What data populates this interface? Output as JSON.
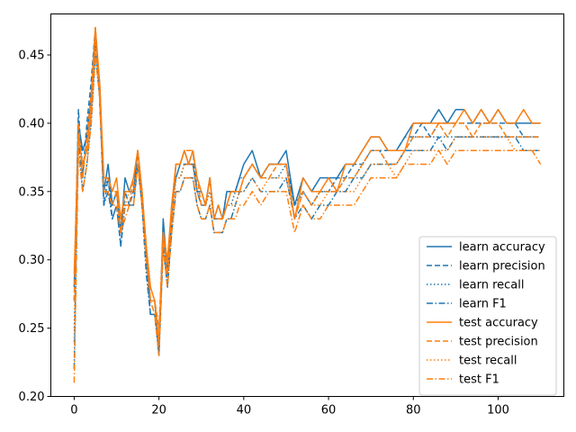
{
  "chart_data": {
    "type": "line",
    "title": "",
    "xlabel": "",
    "ylabel": "",
    "xlim": [
      -5.5,
      115.5
    ],
    "ylim": [
      0.2,
      0.48
    ],
    "xticks": [
      0,
      20,
      40,
      60,
      80,
      100
    ],
    "yticks": [
      0.2,
      0.25,
      0.3,
      0.35,
      0.4,
      0.45
    ],
    "ytick_labels": [
      "0.20",
      "0.25",
      "0.30",
      "0.35",
      "0.40",
      "0.45"
    ],
    "grid": false,
    "legend_position": "lower-right",
    "colors": {
      "learn": "#1f77b4",
      "test": "#ff7f0e"
    },
    "series": [
      {
        "name": "learn accuracy",
        "group": "learn",
        "dash": "solid",
        "x": [
          0,
          1,
          2,
          3,
          4,
          5,
          6,
          7,
          8,
          9,
          10,
          11,
          12,
          13,
          14,
          15,
          16,
          17,
          18,
          19,
          20,
          21,
          22,
          23,
          24,
          25,
          26,
          27,
          28,
          29,
          30,
          31,
          32,
          33,
          34,
          35,
          36,
          37,
          38,
          39,
          40,
          42,
          44,
          46,
          48,
          50,
          52,
          54,
          56,
          58,
          60,
          62,
          64,
          66,
          68,
          70,
          72,
          74,
          76,
          78,
          80,
          82,
          84,
          86,
          88,
          90,
          92,
          94,
          96,
          98,
          100,
          102,
          104,
          106,
          108,
          110
        ],
        "y": [
          0.28,
          0.4,
          0.38,
          0.39,
          0.42,
          0.46,
          0.43,
          0.35,
          0.37,
          0.34,
          0.35,
          0.32,
          0.36,
          0.35,
          0.35,
          0.38,
          0.35,
          0.3,
          0.27,
          0.27,
          0.23,
          0.33,
          0.29,
          0.34,
          0.36,
          0.37,
          0.38,
          0.37,
          0.37,
          0.35,
          0.35,
          0.34,
          0.36,
          0.33,
          0.34,
          0.33,
          0.35,
          0.35,
          0.35,
          0.36,
          0.37,
          0.38,
          0.36,
          0.37,
          0.37,
          0.38,
          0.34,
          0.36,
          0.35,
          0.36,
          0.36,
          0.36,
          0.37,
          0.37,
          0.38,
          0.39,
          0.39,
          0.38,
          0.38,
          0.39,
          0.4,
          0.4,
          0.4,
          0.41,
          0.4,
          0.41,
          0.41,
          0.4,
          0.41,
          0.4,
          0.41,
          0.4,
          0.4,
          0.4,
          0.4,
          0.4
        ]
      },
      {
        "name": "learn precision",
        "group": "learn",
        "dash": "dashed",
        "x": [
          0,
          1,
          2,
          3,
          4,
          5,
          6,
          7,
          8,
          9,
          10,
          11,
          12,
          13,
          14,
          15,
          16,
          17,
          18,
          19,
          20,
          21,
          22,
          23,
          24,
          25,
          26,
          27,
          28,
          29,
          30,
          31,
          32,
          33,
          34,
          35,
          36,
          37,
          38,
          39,
          40,
          42,
          44,
          46,
          48,
          50,
          52,
          54,
          56,
          58,
          60,
          62,
          64,
          66,
          68,
          70,
          72,
          74,
          76,
          78,
          80,
          82,
          84,
          86,
          88,
          90,
          92,
          94,
          96,
          98,
          100,
          102,
          104,
          106,
          108,
          110
        ],
        "y": [
          0.27,
          0.41,
          0.36,
          0.4,
          0.43,
          0.47,
          0.42,
          0.34,
          0.36,
          0.33,
          0.34,
          0.31,
          0.35,
          0.34,
          0.35,
          0.38,
          0.35,
          0.3,
          0.26,
          0.26,
          0.24,
          0.32,
          0.28,
          0.33,
          0.37,
          0.37,
          0.37,
          0.37,
          0.38,
          0.35,
          0.34,
          0.34,
          0.36,
          0.33,
          0.33,
          0.33,
          0.35,
          0.35,
          0.35,
          0.36,
          0.36,
          0.37,
          0.36,
          0.37,
          0.37,
          0.37,
          0.34,
          0.35,
          0.34,
          0.35,
          0.35,
          0.36,
          0.36,
          0.37,
          0.37,
          0.38,
          0.38,
          0.38,
          0.38,
          0.39,
          0.39,
          0.4,
          0.39,
          0.4,
          0.4,
          0.4,
          0.4,
          0.4,
          0.4,
          0.4,
          0.4,
          0.4,
          0.4,
          0.39,
          0.39,
          0.39
        ]
      },
      {
        "name": "learn recall",
        "group": "learn",
        "dash": "dotted",
        "x": [
          0,
          1,
          2,
          3,
          4,
          5,
          6,
          7,
          8,
          9,
          10,
          11,
          12,
          13,
          14,
          15,
          16,
          17,
          18,
          19,
          20,
          21,
          22,
          23,
          24,
          25,
          26,
          27,
          28,
          29,
          30,
          31,
          32,
          33,
          34,
          35,
          36,
          37,
          38,
          39,
          40,
          42,
          44,
          46,
          48,
          50,
          52,
          54,
          56,
          58,
          60,
          62,
          64,
          66,
          68,
          70,
          72,
          74,
          76,
          78,
          80,
          82,
          84,
          86,
          88,
          90,
          92,
          94,
          96,
          98,
          100,
          102,
          104,
          106,
          108,
          110
        ],
        "y": [
          0.24,
          0.4,
          0.37,
          0.38,
          0.41,
          0.46,
          0.43,
          0.35,
          0.36,
          0.34,
          0.35,
          0.32,
          0.35,
          0.35,
          0.35,
          0.37,
          0.35,
          0.3,
          0.27,
          0.27,
          0.24,
          0.32,
          0.29,
          0.33,
          0.36,
          0.36,
          0.37,
          0.37,
          0.37,
          0.35,
          0.34,
          0.34,
          0.35,
          0.33,
          0.33,
          0.33,
          0.34,
          0.34,
          0.35,
          0.36,
          0.36,
          0.37,
          0.36,
          0.36,
          0.36,
          0.37,
          0.34,
          0.35,
          0.34,
          0.35,
          0.35,
          0.35,
          0.36,
          0.36,
          0.37,
          0.38,
          0.38,
          0.37,
          0.37,
          0.38,
          0.39,
          0.39,
          0.39,
          0.39,
          0.39,
          0.39,
          0.39,
          0.39,
          0.39,
          0.39,
          0.39,
          0.39,
          0.39,
          0.39,
          0.39,
          0.39
        ]
      },
      {
        "name": "learn F1",
        "group": "learn",
        "dash": "dashdot",
        "x": [
          0,
          1,
          2,
          3,
          4,
          5,
          6,
          7,
          8,
          9,
          10,
          11,
          12,
          13,
          14,
          15,
          16,
          17,
          18,
          19,
          20,
          21,
          22,
          23,
          24,
          25,
          26,
          27,
          28,
          29,
          30,
          31,
          32,
          33,
          34,
          35,
          36,
          37,
          38,
          39,
          40,
          42,
          44,
          46,
          48,
          50,
          52,
          54,
          56,
          58,
          60,
          62,
          64,
          66,
          68,
          70,
          72,
          74,
          76,
          78,
          80,
          82,
          84,
          86,
          88,
          90,
          92,
          94,
          96,
          98,
          100,
          102,
          104,
          106,
          108,
          110
        ],
        "y": [
          0.22,
          0.39,
          0.35,
          0.37,
          0.4,
          0.45,
          0.42,
          0.34,
          0.35,
          0.33,
          0.34,
          0.31,
          0.34,
          0.34,
          0.34,
          0.37,
          0.34,
          0.29,
          0.26,
          0.26,
          0.23,
          0.31,
          0.28,
          0.32,
          0.35,
          0.35,
          0.36,
          0.36,
          0.36,
          0.34,
          0.33,
          0.33,
          0.34,
          0.32,
          0.32,
          0.32,
          0.33,
          0.33,
          0.34,
          0.35,
          0.35,
          0.36,
          0.35,
          0.35,
          0.35,
          0.36,
          0.33,
          0.34,
          0.33,
          0.34,
          0.34,
          0.35,
          0.35,
          0.36,
          0.36,
          0.37,
          0.37,
          0.37,
          0.37,
          0.38,
          0.38,
          0.38,
          0.38,
          0.39,
          0.38,
          0.39,
          0.39,
          0.39,
          0.39,
          0.39,
          0.39,
          0.39,
          0.39,
          0.38,
          0.38,
          0.38
        ]
      },
      {
        "name": "test accuracy",
        "group": "test",
        "dash": "solid",
        "x": [
          0,
          1,
          2,
          3,
          4,
          5,
          6,
          7,
          8,
          9,
          10,
          11,
          12,
          13,
          14,
          15,
          16,
          17,
          18,
          19,
          20,
          21,
          22,
          23,
          24,
          25,
          26,
          27,
          28,
          29,
          30,
          31,
          32,
          33,
          34,
          35,
          36,
          37,
          38,
          39,
          40,
          42,
          44,
          46,
          48,
          50,
          52,
          54,
          56,
          58,
          60,
          62,
          64,
          66,
          68,
          70,
          72,
          74,
          76,
          78,
          80,
          82,
          84,
          86,
          88,
          90,
          92,
          94,
          96,
          98,
          100,
          102,
          104,
          106,
          108,
          110
        ],
        "y": [
          0.29,
          0.39,
          0.37,
          0.38,
          0.41,
          0.47,
          0.43,
          0.36,
          0.36,
          0.35,
          0.36,
          0.33,
          0.35,
          0.35,
          0.36,
          0.38,
          0.35,
          0.31,
          0.28,
          0.27,
          0.24,
          0.32,
          0.3,
          0.34,
          0.37,
          0.37,
          0.38,
          0.37,
          0.38,
          0.36,
          0.35,
          0.34,
          0.36,
          0.33,
          0.34,
          0.33,
          0.34,
          0.35,
          0.35,
          0.35,
          0.36,
          0.37,
          0.36,
          0.37,
          0.37,
          0.37,
          0.33,
          0.36,
          0.35,
          0.35,
          0.36,
          0.35,
          0.37,
          0.37,
          0.38,
          0.39,
          0.39,
          0.38,
          0.38,
          0.38,
          0.4,
          0.4,
          0.4,
          0.4,
          0.4,
          0.4,
          0.41,
          0.4,
          0.41,
          0.4,
          0.41,
          0.4,
          0.4,
          0.41,
          0.4,
          0.4
        ]
      },
      {
        "name": "test precision",
        "group": "test",
        "dash": "dashed",
        "x": [
          0,
          1,
          2,
          3,
          4,
          5,
          6,
          7,
          8,
          9,
          10,
          11,
          12,
          13,
          14,
          15,
          16,
          17,
          18,
          19,
          20,
          21,
          22,
          23,
          24,
          25,
          26,
          27,
          28,
          29,
          30,
          31,
          32,
          33,
          34,
          35,
          36,
          37,
          38,
          39,
          40,
          42,
          44,
          46,
          48,
          50,
          52,
          54,
          56,
          58,
          60,
          62,
          64,
          66,
          68,
          70,
          72,
          74,
          76,
          78,
          80,
          82,
          84,
          86,
          88,
          90,
          92,
          94,
          96,
          98,
          100,
          102,
          104,
          106,
          108,
          110
        ],
        "y": [
          0.27,
          0.4,
          0.36,
          0.39,
          0.42,
          0.47,
          0.42,
          0.35,
          0.35,
          0.34,
          0.35,
          0.32,
          0.34,
          0.34,
          0.36,
          0.38,
          0.35,
          0.31,
          0.27,
          0.27,
          0.25,
          0.32,
          0.29,
          0.33,
          0.37,
          0.37,
          0.38,
          0.38,
          0.38,
          0.36,
          0.34,
          0.34,
          0.36,
          0.33,
          0.33,
          0.33,
          0.34,
          0.35,
          0.35,
          0.35,
          0.36,
          0.37,
          0.36,
          0.36,
          0.37,
          0.37,
          0.33,
          0.35,
          0.34,
          0.35,
          0.35,
          0.35,
          0.36,
          0.36,
          0.37,
          0.38,
          0.38,
          0.37,
          0.37,
          0.38,
          0.39,
          0.39,
          0.39,
          0.4,
          0.39,
          0.4,
          0.4,
          0.39,
          0.4,
          0.4,
          0.4,
          0.39,
          0.39,
          0.39,
          0.39,
          0.39
        ]
      },
      {
        "name": "test recall",
        "group": "test",
        "dash": "dotted",
        "x": [
          0,
          1,
          2,
          3,
          4,
          5,
          6,
          7,
          8,
          9,
          10,
          11,
          12,
          13,
          14,
          15,
          16,
          17,
          18,
          19,
          20,
          21,
          22,
          23,
          24,
          25,
          26,
          27,
          28,
          29,
          30,
          31,
          32,
          33,
          34,
          35,
          36,
          37,
          38,
          39,
          40,
          42,
          44,
          46,
          48,
          50,
          52,
          54,
          56,
          58,
          60,
          62,
          64,
          66,
          68,
          70,
          72,
          74,
          76,
          78,
          80,
          82,
          84,
          86,
          88,
          90,
          92,
          94,
          96,
          98,
          100,
          102,
          104,
          106,
          108,
          110
        ],
        "y": [
          0.25,
          0.39,
          0.37,
          0.38,
          0.41,
          0.46,
          0.43,
          0.36,
          0.36,
          0.35,
          0.35,
          0.33,
          0.34,
          0.35,
          0.35,
          0.37,
          0.35,
          0.31,
          0.28,
          0.27,
          0.24,
          0.32,
          0.29,
          0.33,
          0.36,
          0.36,
          0.37,
          0.37,
          0.37,
          0.35,
          0.34,
          0.34,
          0.35,
          0.33,
          0.33,
          0.33,
          0.34,
          0.34,
          0.34,
          0.35,
          0.35,
          0.36,
          0.35,
          0.36,
          0.36,
          0.36,
          0.33,
          0.35,
          0.34,
          0.34,
          0.35,
          0.35,
          0.35,
          0.35,
          0.36,
          0.37,
          0.37,
          0.37,
          0.36,
          0.37,
          0.38,
          0.38,
          0.38,
          0.38,
          0.38,
          0.39,
          0.39,
          0.39,
          0.39,
          0.39,
          0.39,
          0.39,
          0.38,
          0.38,
          0.38,
          0.38
        ]
      },
      {
        "name": "test F1",
        "group": "test",
        "dash": "dashdot",
        "x": [
          0,
          1,
          2,
          3,
          4,
          5,
          6,
          7,
          8,
          9,
          10,
          11,
          12,
          13,
          14,
          15,
          16,
          17,
          18,
          19,
          20,
          21,
          22,
          23,
          24,
          25,
          26,
          27,
          28,
          29,
          30,
          31,
          32,
          33,
          34,
          35,
          36,
          37,
          38,
          39,
          40,
          42,
          44,
          46,
          48,
          50,
          52,
          54,
          56,
          58,
          60,
          62,
          64,
          66,
          68,
          70,
          72,
          74,
          76,
          78,
          80,
          82,
          84,
          86,
          88,
          90,
          92,
          94,
          96,
          98,
          100,
          102,
          104,
          106,
          108,
          110
        ],
        "y": [
          0.21,
          0.38,
          0.35,
          0.37,
          0.4,
          0.45,
          0.42,
          0.35,
          0.35,
          0.34,
          0.34,
          0.32,
          0.33,
          0.34,
          0.34,
          0.37,
          0.34,
          0.3,
          0.27,
          0.26,
          0.23,
          0.31,
          0.28,
          0.32,
          0.35,
          0.35,
          0.36,
          0.36,
          0.36,
          0.34,
          0.33,
          0.33,
          0.34,
          0.32,
          0.32,
          0.32,
          0.33,
          0.33,
          0.33,
          0.34,
          0.34,
          0.35,
          0.34,
          0.35,
          0.35,
          0.35,
          0.32,
          0.34,
          0.33,
          0.33,
          0.34,
          0.34,
          0.34,
          0.34,
          0.35,
          0.36,
          0.36,
          0.36,
          0.36,
          0.37,
          0.37,
          0.37,
          0.37,
          0.38,
          0.37,
          0.38,
          0.38,
          0.38,
          0.38,
          0.38,
          0.38,
          0.38,
          0.38,
          0.38,
          0.38,
          0.37
        ]
      }
    ]
  }
}
